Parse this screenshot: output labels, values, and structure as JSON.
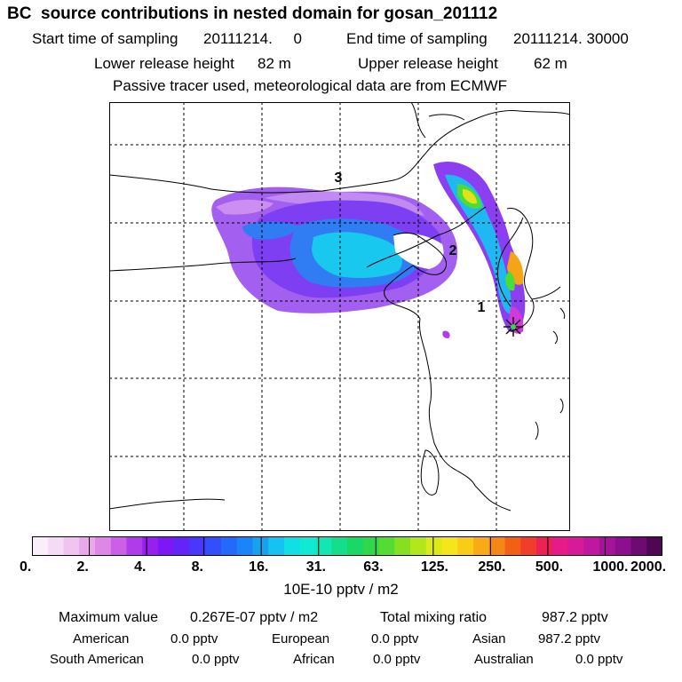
{
  "title": "BC  source contributions in nested domain for gosan_201112",
  "sampling": {
    "start_label": "Start time of sampling",
    "start_value": "20111214.     0",
    "end_label": "End time of sampling",
    "end_value": "20111214. 30000"
  },
  "release": {
    "lower_label": "Lower release height",
    "lower_value": "82 m",
    "upper_label": "Upper release height",
    "upper_value": "62 m"
  },
  "note": "Passive tracer used, meteorological data are from ECMWF",
  "map_labels": {
    "label1": "1",
    "label2": "2",
    "label3": "3"
  },
  "colorbar": {
    "colors": [
      "#fbeefb",
      "#f6dbf6",
      "#f0c3f0",
      "#e9a8ea",
      "#dd88e6",
      "#cd5ee6",
      "#b13bea",
      "#9720ef",
      "#7d18f4",
      "#6224f8",
      "#4938fb",
      "#334ffc",
      "#2269fc",
      "#1a85f8",
      "#17a1ef",
      "#17c1f4",
      "#10dfe6",
      "#10ead4",
      "#12e6b5",
      "#15dd8e",
      "#1ad866",
      "#2ed84a",
      "#55dc32",
      "#86e022",
      "#b4e61c",
      "#dbe81a",
      "#f5e51b",
      "#f9cc18",
      "#f8aa17",
      "#f58716",
      "#f26016",
      "#ef3f2b",
      "#ec2154",
      "#e61a88",
      "#d61a9a",
      "#bf17a0",
      "#a5139b",
      "#8b0f8f",
      "#6d0b73",
      "#500654"
    ],
    "tick_labels": [
      "0.",
      "2.",
      "4.",
      "8.",
      "16.",
      "31.",
      "63.",
      "125.",
      "250.",
      "500.",
      "1000.",
      "2000."
    ],
    "units": "10E-10 pptv / m2"
  },
  "summary": {
    "max_label": "Maximum value",
    "max_value": "0.267E-07 pptv / m2",
    "total_label": "Total mixing ratio",
    "total_value": "987.2 pptv"
  },
  "regions": [
    {
      "name": "American",
      "value": "0.0 pptv"
    },
    {
      "name": "European",
      "value": "0.0 pptv"
    },
    {
      "name": "Asian",
      "value": "987.2 pptv"
    },
    {
      "name": "South American",
      "value": "0.0 pptv"
    },
    {
      "name": "African",
      "value": "0.0 pptv"
    },
    {
      "name": "Australian",
      "value": "0.0 pptv"
    }
  ]
}
